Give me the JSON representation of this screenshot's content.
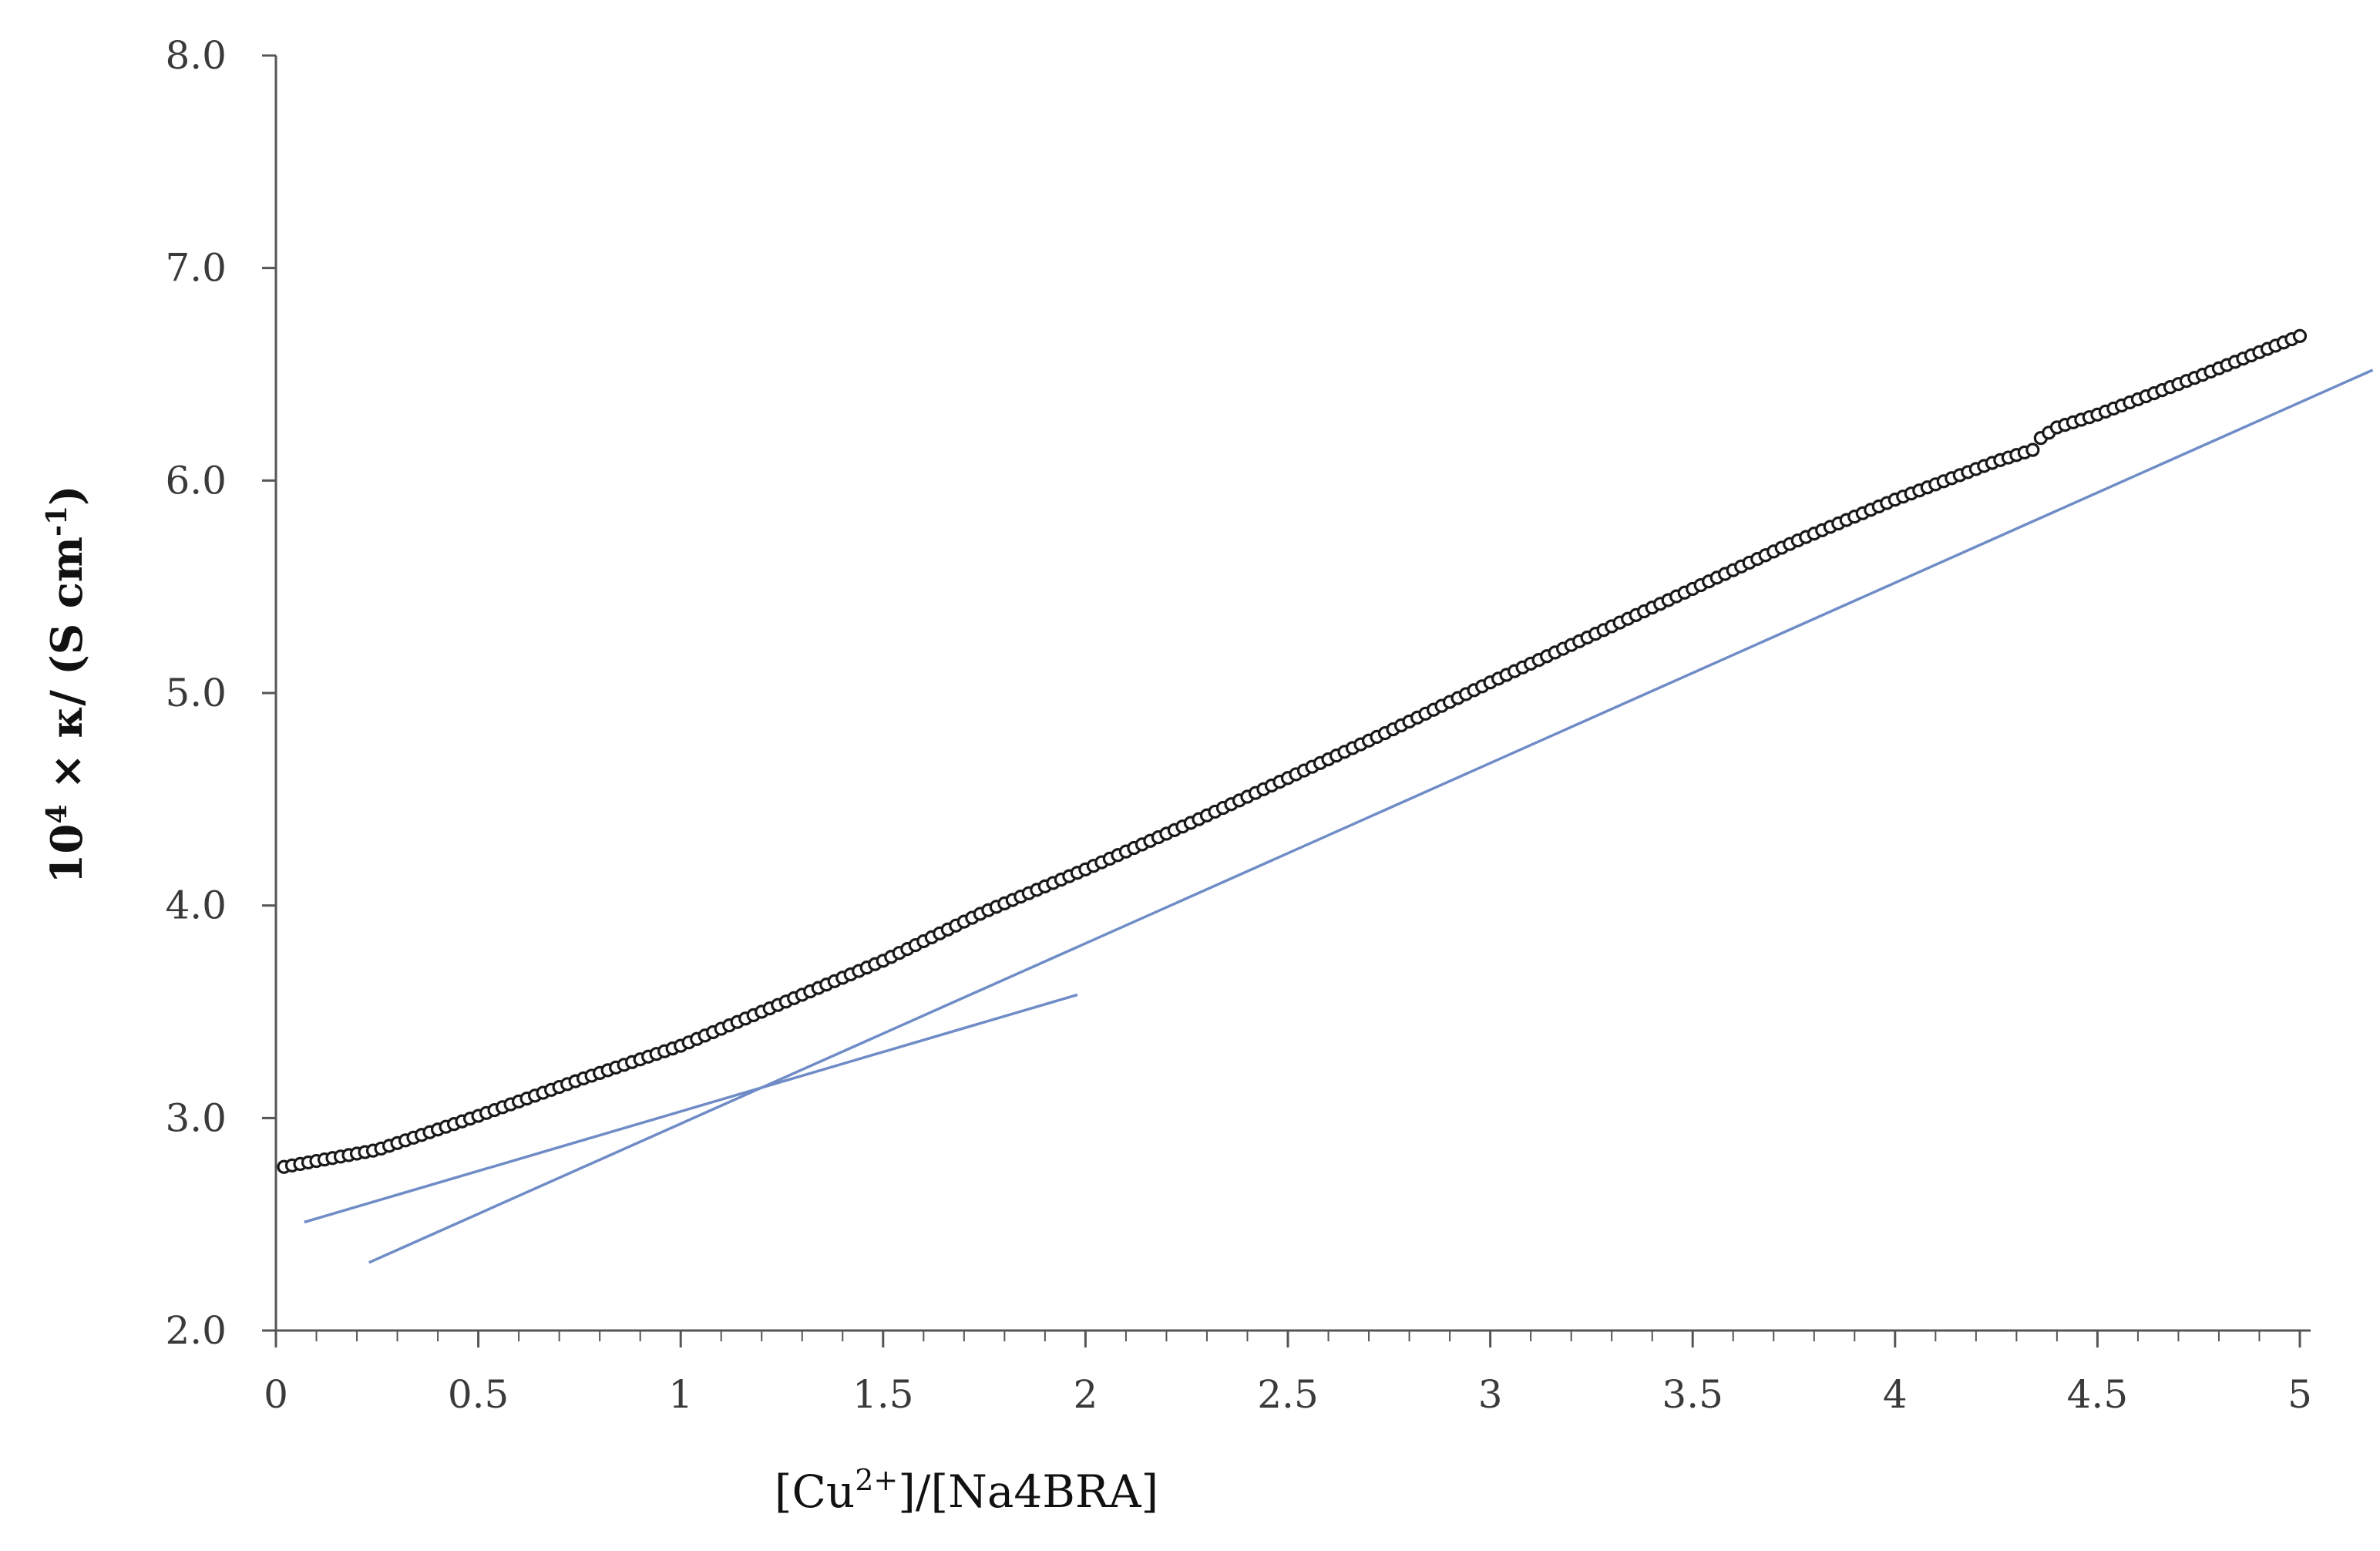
{
  "chart_data": {
    "type": "scatter",
    "title": "",
    "xlabel": {
      "prefix": "[Cu",
      "sup": "2+",
      "suffix": "]/[Na4BRA]"
    },
    "ylabel": {
      "base": "10",
      "sup1": "4",
      "middle": " × κ/ (S cm",
      "sup2": "-1",
      "suffix": ")"
    },
    "xlim": [
      0,
      5.15
    ],
    "ylim": [
      2.0,
      8.0
    ],
    "x_ticks": [
      "0",
      "0.5",
      "1",
      "1.5",
      "2",
      "2.5",
      "3",
      "3.5",
      "4",
      "4.5",
      "5"
    ],
    "x_tick_values": [
      0,
      0.5,
      1,
      1.5,
      2,
      2.5,
      3,
      3.5,
      4,
      4.5,
      5
    ],
    "y_ticks": [
      "2.0",
      "3.0",
      "4.0",
      "5.0",
      "6.0",
      "7.0",
      "8.0"
    ],
    "y_tick_values": [
      2,
      3,
      4,
      5,
      6,
      7,
      8
    ],
    "grid": false,
    "series": [
      {
        "kind": "markers",
        "marker": "open-circle",
        "color": "#1a1a1a",
        "x": [
          0.02,
          0.25,
          0.5,
          0.75,
          1.0,
          1.25,
          1.5,
          1.75,
          2.0,
          2.25,
          2.5,
          2.75,
          3.0,
          3.25,
          3.5,
          3.75,
          4.0,
          4.25,
          4.35,
          4.36,
          4.4,
          4.45,
          4.5,
          4.75,
          5.0
        ],
        "y": [
          2.77,
          2.85,
          3.01,
          3.18,
          3.34,
          3.54,
          3.74,
          3.97,
          4.17,
          4.38,
          4.6,
          4.82,
          5.05,
          5.27,
          5.49,
          5.71,
          5.91,
          6.09,
          6.15,
          6.2,
          6.25,
          6.28,
          6.31,
          6.49,
          6.68
        ]
      },
      {
        "kind": "line",
        "color": "#6f8cc7",
        "x": [
          0.07,
          1.98
        ],
        "y": [
          2.51,
          3.58
        ]
      },
      {
        "kind": "line",
        "color": "#6f8cc7",
        "x": [
          0.23,
          5.18
        ],
        "y": [
          2.32,
          6.52
        ]
      }
    ]
  }
}
